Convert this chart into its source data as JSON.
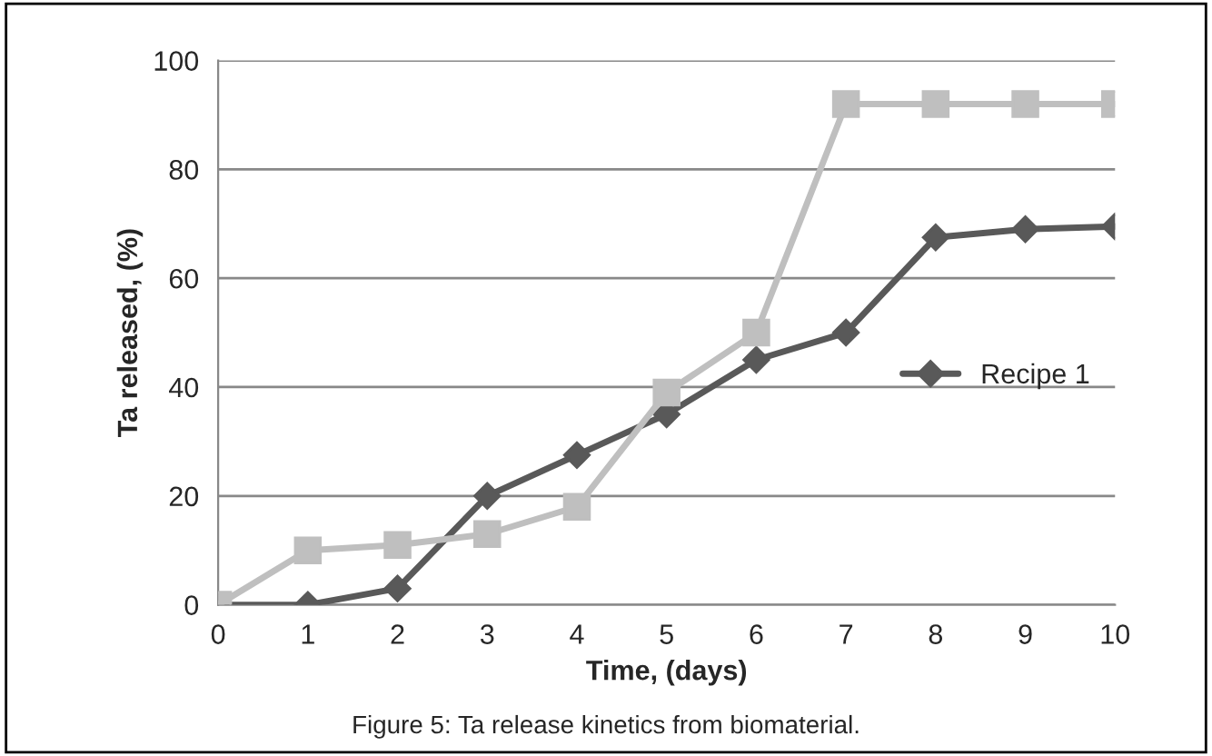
{
  "chart_data": {
    "type": "line",
    "xlabel": "Time, (days)",
    "ylabel": "Ta released, (%)",
    "x": [
      0,
      1,
      2,
      3,
      4,
      5,
      6,
      7,
      8,
      9,
      10
    ],
    "series": [
      {
        "name": "Recipe 1",
        "color": "#595959",
        "marker": "diamond",
        "values": [
          0,
          0,
          3,
          20,
          27.5,
          35,
          45,
          50,
          67.5,
          69,
          69.5
        ]
      },
      {
        "color": "#bfbfbf",
        "marker": "square",
        "values": [
          0,
          10,
          11,
          13,
          18,
          39,
          50,
          92,
          92,
          92,
          92
        ]
      }
    ],
    "xlim": [
      0,
      10
    ],
    "xticks": [
      0,
      1,
      2,
      3,
      4,
      5,
      6,
      7,
      8,
      9,
      10
    ],
    "ylim": [
      0,
      100
    ],
    "yticks": [
      0,
      20,
      40,
      60,
      80,
      100
    ],
    "grid": "y",
    "legend": "right",
    "line_style": "solid",
    "annotations": [
      "Figure 5: Ta release kinetics from biomaterial."
    ]
  }
}
